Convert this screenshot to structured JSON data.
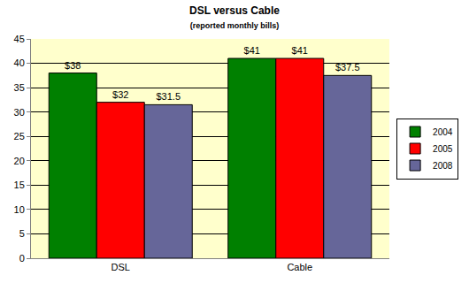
{
  "chart_data": {
    "type": "bar",
    "title": "DSL versus Cable",
    "subtitle": "(reported monthly bills)",
    "categories": [
      "DSL",
      "Cable"
    ],
    "series": [
      {
        "name": "2004",
        "color": "#008000",
        "values": [
          38,
          41
        ],
        "value_labels": [
          "$38",
          "$41"
        ]
      },
      {
        "name": "2005",
        "color": "#ff0000",
        "values": [
          32,
          41
        ],
        "value_labels": [
          "$32",
          "$41"
        ]
      },
      {
        "name": "2008",
        "color": "#666699",
        "values": [
          31.5,
          37.5
        ],
        "value_labels": [
          "$31.5",
          "$37.5"
        ]
      }
    ],
    "ylim": [
      0,
      45
    ],
    "yticks": [
      0,
      5,
      10,
      15,
      20,
      25,
      30,
      35,
      40,
      45
    ],
    "grid": true,
    "legend": "right",
    "data_labels": true
  }
}
